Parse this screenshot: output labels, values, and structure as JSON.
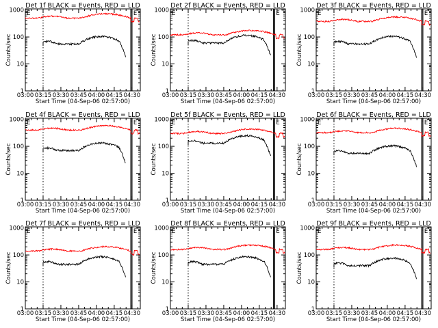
{
  "figure": {
    "background": "#ffffff",
    "colors": {
      "events": "#000000",
      "lld": "#ff0000",
      "axes": "#000000"
    }
  },
  "shared_axes": {
    "x_ticks": [
      "03:00",
      "03:15",
      "03:30",
      "03:45",
      "04:00",
      "04:15",
      "04:30"
    ],
    "y_ticks": [
      "1",
      "10",
      "100",
      "1000"
    ],
    "xlabel": "Start Time (04-Sep-06 02:57:00)",
    "ylabel": "Counts/sec",
    "marker_label": "E"
  },
  "chart_data": [
    {
      "type": "line",
      "title": "Det 1f BLACK = Events, RED = LLD",
      "x_unit": "minutes since 02:57:00",
      "xlim": [
        3,
        100
      ],
      "ylim": [
        1,
        1100
      ],
      "y_scale": "log",
      "dotted_x": 18,
      "bars_x": [
        92,
        93
      ],
      "series": [
        {
          "name": "LLD",
          "color": "#ff0000",
          "base": 500
        },
        {
          "name": "Events",
          "color": "#000000",
          "base": 55
        }
      ]
    },
    {
      "type": "line",
      "title": "Det 2f BLACK = Events, RED = LLD",
      "x_unit": "minutes since 02:57:00",
      "xlim": [
        3,
        100
      ],
      "ylim": [
        1,
        1100
      ],
      "y_scale": "log",
      "dotted_x": 18,
      "bars_x": [
        90,
        91
      ],
      "series": [
        {
          "name": "LLD",
          "color": "#ff0000",
          "base": 120
        },
        {
          "name": "Events",
          "color": "#000000",
          "base": 60
        }
      ]
    },
    {
      "type": "line",
      "title": "Det 3f BLACK = Events, RED = LLD",
      "x_unit": "minutes since 02:57:00",
      "xlim": [
        3,
        100
      ],
      "ylim": [
        1,
        1100
      ],
      "y_scale": "log",
      "dotted_x": 18,
      "bars_x": [
        92,
        93
      ],
      "series": [
        {
          "name": "LLD",
          "color": "#ff0000",
          "base": 380
        },
        {
          "name": "Events",
          "color": "#000000",
          "base": 55
        }
      ]
    },
    {
      "type": "line",
      "title": "Det 4f BLACK = Events, RED = LLD",
      "x_unit": "minutes since 02:57:00",
      "xlim": [
        3,
        100
      ],
      "ylim": [
        1,
        1100
      ],
      "y_scale": "log",
      "dotted_x": 18,
      "bars_x": [
        92,
        93
      ],
      "series": [
        {
          "name": "LLD",
          "color": "#ff0000",
          "base": 400
        },
        {
          "name": "Events",
          "color": "#000000",
          "base": 70
        }
      ]
    },
    {
      "type": "line",
      "title": "Det 5f BLACK = Events, RED = LLD",
      "x_unit": "minutes since 02:57:00",
      "xlim": [
        3,
        100
      ],
      "ylim": [
        1,
        1100
      ],
      "y_scale": "log",
      "dotted_x": 18,
      "bars_x": [
        90,
        91
      ],
      "series": [
        {
          "name": "LLD",
          "color": "#ff0000",
          "base": 300
        },
        {
          "name": "Events",
          "color": "#000000",
          "base": 130
        }
      ]
    },
    {
      "type": "line",
      "title": "Det 6f BLACK = Events, RED = LLD",
      "x_unit": "minutes since 02:57:00",
      "xlim": [
        3,
        100
      ],
      "ylim": [
        1,
        1100
      ],
      "y_scale": "log",
      "dotted_x": 18,
      "bars_x": [
        92,
        93
      ],
      "series": [
        {
          "name": "LLD",
          "color": "#ff0000",
          "base": 320
        },
        {
          "name": "Events",
          "color": "#000000",
          "base": 55
        }
      ]
    },
    {
      "type": "line",
      "title": "Det 7f BLACK = Events, RED = LLD",
      "x_unit": "minutes since 02:57:00",
      "xlim": [
        3,
        100
      ],
      "ylim": [
        1,
        1100
      ],
      "y_scale": "log",
      "dotted_x": 18,
      "bars_x": [
        92,
        93
      ],
      "series": [
        {
          "name": "LLD",
          "color": "#ff0000",
          "base": 140
        },
        {
          "name": "Events",
          "color": "#000000",
          "base": 45
        }
      ]
    },
    {
      "type": "line",
      "title": "Det 8f BLACK = Events, RED = LLD",
      "x_unit": "minutes since 02:57:00",
      "xlim": [
        3,
        100
      ],
      "ylim": [
        1,
        1100
      ],
      "y_scale": "log",
      "dotted_x": 18,
      "bars_x": [
        90,
        91
      ],
      "series": [
        {
          "name": "LLD",
          "color": "#ff0000",
          "base": 160
        },
        {
          "name": "Events",
          "color": "#000000",
          "base": 45
        }
      ]
    },
    {
      "type": "line",
      "title": "Det 9f BLACK = Events, RED = LLD",
      "x_unit": "minutes since 02:57:00",
      "xlim": [
        3,
        100
      ],
      "ylim": [
        1,
        1100
      ],
      "y_scale": "log",
      "dotted_x": 18,
      "bars_x": [
        92,
        93
      ],
      "series": [
        {
          "name": "LLD",
          "color": "#ff0000",
          "base": 160
        },
        {
          "name": "Events",
          "color": "#000000",
          "base": 40
        }
      ]
    }
  ]
}
